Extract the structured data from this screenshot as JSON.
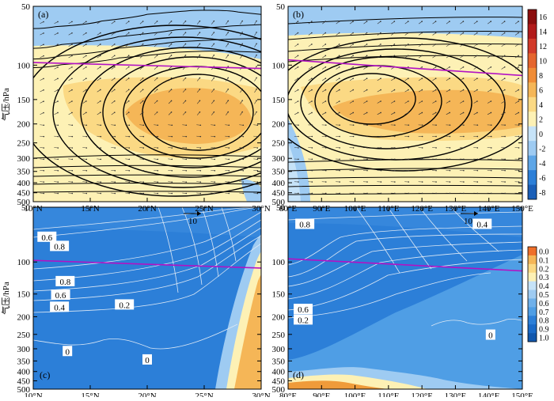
{
  "chart_data": [
    {
      "type": "contour",
      "panel_label": "(a)",
      "ylabel": "气压/hPa",
      "xticks": [
        "10°N",
        "15°N",
        "20°N",
        "25°N",
        "30°N"
      ],
      "xrange": [
        10,
        30
      ],
      "yticks": [
        "50",
        "100",
        "150",
        "200",
        "250",
        "300",
        "350",
        "400",
        "450",
        "500"
      ],
      "yrange": [
        50,
        500
      ],
      "reference_vector_label": "10",
      "contour_lines": [
        {
          "level": -1,
          "points": [
            [
              10,
              65
            ],
            [
              14,
              62
            ],
            [
              18,
              57
            ],
            [
              22,
              53
            ],
            [
              26,
              52
            ],
            [
              30,
              55
            ]
          ]
        },
        {
          "level": -2,
          "points": [
            [
              10,
              82
            ],
            [
              15,
              75
            ],
            [
              20,
              68
            ],
            [
              25,
              64
            ],
            [
              30,
              62
            ]
          ]
        },
        {
          "level": -3,
          "points": [
            [
              10,
              93
            ],
            [
              15,
              86
            ],
            [
              20,
              78
            ],
            [
              25,
              74
            ],
            [
              30,
              73
            ]
          ]
        },
        {
          "level": -4,
          "points": [
            [
              10,
              103
            ],
            [
              15,
              96
            ],
            [
              20,
              88
            ],
            [
              25,
              84
            ],
            [
              30,
              86
            ]
          ]
        }
      ],
      "tropopause": {
        "x": [
          10,
          30
        ],
        "p": [
          97,
          104
        ]
      }
    },
    {
      "type": "contour",
      "panel_label": "(b)",
      "xticks": [
        "80°E",
        "90°E",
        "100°E",
        "110°E",
        "120°E",
        "130°E",
        "140°E",
        "150°E"
      ],
      "xrange": [
        80,
        150
      ],
      "yticks": [
        "50",
        "100",
        "150",
        "200",
        "250",
        "300",
        "350",
        "400",
        "450",
        "500"
      ],
      "yrange": [
        50,
        500
      ],
      "reference_vector_label": "10",
      "tropopause": {
        "x": [
          80,
          150
        ],
        "p": [
          94,
          113
        ]
      }
    },
    {
      "type": "contour",
      "panel_label": "(c)",
      "ylabel": "气压/hPa",
      "xticks": [
        "10°N",
        "15°N",
        "20°N",
        "25°N",
        "30°N"
      ],
      "xrange": [
        10,
        30
      ],
      "yticks": [
        "50",
        "100",
        "150",
        "200",
        "250",
        "300",
        "350",
        "400",
        "450",
        "500"
      ],
      "yrange": [
        50,
        500
      ],
      "contour_labels": [
        {
          "text": "0.6",
          "x": 11.2,
          "p": 73
        },
        {
          "text": "0.8",
          "x": 12.3,
          "p": 82
        },
        {
          "text": "0.8",
          "x": 12.8,
          "p": 128
        },
        {
          "text": "0.6",
          "x": 12.4,
          "p": 152
        },
        {
          "text": "0.4",
          "x": 12.3,
          "p": 177
        },
        {
          "text": "0.2",
          "x": 18.0,
          "p": 172
        },
        {
          "text": "0",
          "x": 13.0,
          "p": 310
        },
        {
          "text": "0",
          "x": 20.0,
          "p": 345
        }
      ],
      "tropopause": {
        "x": [
          10,
          30
        ],
        "p": [
          98,
          108
        ]
      }
    },
    {
      "type": "contour",
      "panel_label": "(d)",
      "xticks": [
        "80°E",
        "90°E",
        "100°E",
        "110°E",
        "120°E",
        "130°E",
        "140°E",
        "150°E"
      ],
      "xrange": [
        80,
        150
      ],
      "yticks": [
        "50",
        "100",
        "150",
        "200",
        "250",
        "300",
        "350",
        "400",
        "450",
        "500"
      ],
      "yrange": [
        50,
        500
      ],
      "contour_labels": [
        {
          "text": "0.8",
          "x": 85,
          "p": 62
        },
        {
          "text": "0.4",
          "x": 138,
          "p": 62
        },
        {
          "text": "0.6",
          "x": 84.5,
          "p": 182
        },
        {
          "text": "0.2",
          "x": 84.5,
          "p": 208
        },
        {
          "text": "0",
          "x": 140.5,
          "p": 252
        }
      ],
      "tropopause": {
        "x": [
          80,
          150
        ],
        "p": [
          96,
          112
        ]
      }
    }
  ],
  "colorbars": [
    {
      "name": "top",
      "labels": [
        "16",
        "14",
        "12",
        "10",
        "8",
        "6",
        "4",
        "2",
        "0",
        "-2",
        "-4",
        "-6",
        "-8"
      ]
    },
    {
      "name": "bottom",
      "labels": [
        "0.0",
        "0.1",
        "0.2",
        "0.3",
        "0.4",
        "0.5",
        "0.6",
        "0.7",
        "0.8",
        "0.9",
        "1.0"
      ]
    }
  ],
  "colors": {
    "deep_blue": "#2c7fd8",
    "mid_blue": "#4f9ee5",
    "light_blue": "#9ecbf2",
    "pale_blue": "#c6e3f8",
    "pale_yellow": "#fdf1b5",
    "yellow": "#fbd984",
    "orange": "#f5b657",
    "deep_orange": "#ef9b3a",
    "purple": "#b312c4"
  }
}
